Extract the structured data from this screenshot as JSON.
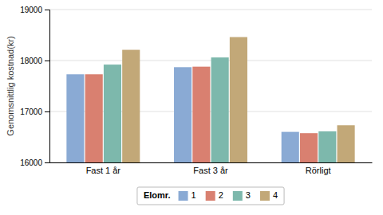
{
  "chart_data": {
    "type": "bar",
    "categories": [
      "Fast 1 år",
      "Fast 3 år",
      "Rörligt"
    ],
    "series": [
      {
        "name": "1",
        "color": "#8aaad4",
        "values": [
          17730,
          17870,
          16600
        ]
      },
      {
        "name": "2",
        "color": "#d98070",
        "values": [
          17730,
          17880,
          16575
        ]
      },
      {
        "name": "3",
        "color": "#7db8ac",
        "values": [
          17920,
          18060,
          16610
        ]
      },
      {
        "name": "4",
        "color": "#c2a878",
        "values": [
          18210,
          18460,
          16730
        ]
      }
    ],
    "legend_title": "Elomr.",
    "ylabel": "Genomsnittlig kostnad(kr)",
    "ylim": [
      16000,
      19000
    ],
    "yticks": [
      16000,
      17000,
      18000,
      19000
    ],
    "grid": true,
    "legend": "bottom"
  }
}
